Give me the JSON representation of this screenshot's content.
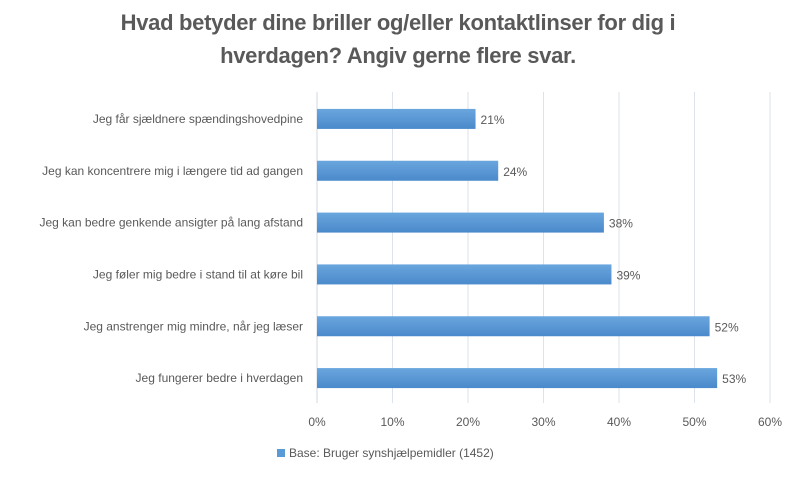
{
  "chart_data": {
    "type": "bar",
    "orientation": "horizontal",
    "title_lines": [
      "Hvad betyder dine briller og/eller kontaktlinser for dig i",
      "hverdagen? Angiv gerne flere svar."
    ],
    "categories": [
      "Jeg får sjældnere spændingshovedpine",
      "Jeg kan koncentrere mig i længere tid ad gangen",
      "Jeg kan bedre genkende ansigter på lang afstand",
      "Jeg føler mig bedre i stand til at køre bil",
      "Jeg anstrenger mig mindre, når jeg læser",
      "Jeg fungerer bedre i hverdagen"
    ],
    "series": [
      {
        "name": "Base: Bruger  synshjælpemidler (1452)",
        "values": [
          21,
          24,
          38,
          39,
          52,
          53
        ],
        "labels": [
          "21%",
          "24%",
          "38%",
          "39%",
          "52%",
          "53%"
        ],
        "color": "#5b9bd5"
      }
    ],
    "xlim": [
      0,
      60
    ],
    "xticks": [
      0,
      10,
      20,
      30,
      40,
      50,
      60
    ],
    "xtick_labels": [
      "0%",
      "10%",
      "20%",
      "30%",
      "40%",
      "50%",
      "60%"
    ],
    "xlabel": "",
    "ylabel": "",
    "grid": true,
    "legend_position": "bottom"
  }
}
